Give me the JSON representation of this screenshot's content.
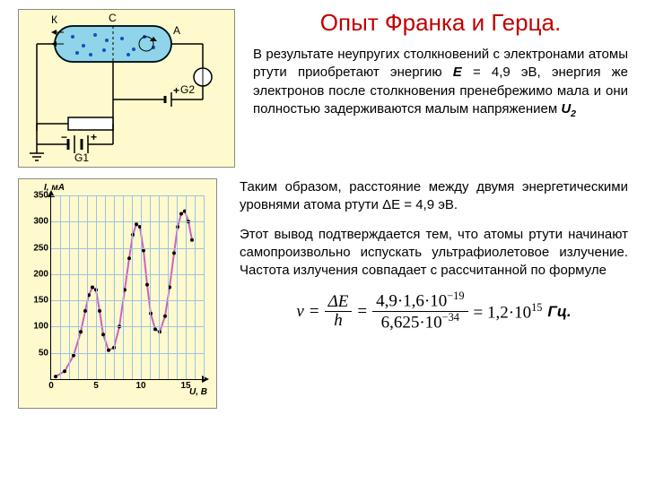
{
  "title": "Опыт Франка и Герца.",
  "para1_a": "В результате неупругих столкновений с электронами атомы ртути приобретают энергию ",
  "para1_E": "E",
  "para1_b": " = 4,9 эВ, энергия же электронов после столкновения пренебрежимо мала и они полностью задерживаются малым напряжением ",
  "para1_U": "U",
  "para1_U_sub": "2",
  "para2": "Таким образом, расстояние между двумя энергетическими уровнями атома ртути ΔE = 4,9  эВ.",
  "para3": "Этот вывод подтверждается тем, что атомы ртути начинают самопроизвольно испускать ультрафиолетовое излучение. Частота излучения совпадает с рассчитанной по формуле",
  "formula": {
    "lhs": "ν",
    "eq": "=",
    "f1_num": "ΔE",
    "f1_den": "h",
    "f2_num": "4,9·1,6·10",
    "f2_num_exp": "−19",
    "f2_den": "6,625·10",
    "f2_den_exp": "−34",
    "rhs": "= 1,2·10",
    "rhs_exp": "15",
    "unit": " Гц."
  },
  "chart": {
    "ylabel": "I, мА",
    "xlabel": "U, В",
    "ylim": [
      0,
      350
    ],
    "ytick_step": 50,
    "xlim": [
      0,
      17
    ],
    "xticks": [
      0,
      5,
      10,
      15
    ],
    "bg": "#fffacd",
    "grid_color": "#9cc3e4",
    "line_color": "#d060c0",
    "points": [
      [
        0.5,
        5
      ],
      [
        1.5,
        15
      ],
      [
        2.5,
        45
      ],
      [
        3.3,
        90
      ],
      [
        3.8,
        130
      ],
      [
        4.2,
        160
      ],
      [
        4.6,
        175
      ],
      [
        5.0,
        170
      ],
      [
        5.4,
        130
      ],
      [
        5.8,
        85
      ],
      [
        6.4,
        55
      ],
      [
        7.0,
        60
      ],
      [
        7.6,
        100
      ],
      [
        8.2,
        170
      ],
      [
        8.7,
        230
      ],
      [
        9.1,
        275
      ],
      [
        9.5,
        295
      ],
      [
        9.9,
        290
      ],
      [
        10.3,
        245
      ],
      [
        10.7,
        180
      ],
      [
        11.1,
        125
      ],
      [
        11.6,
        95
      ],
      [
        12.1,
        90
      ],
      [
        12.7,
        120
      ],
      [
        13.2,
        175
      ],
      [
        13.7,
        240
      ],
      [
        14.1,
        290
      ],
      [
        14.5,
        315
      ],
      [
        14.9,
        320
      ],
      [
        15.3,
        300
      ],
      [
        15.7,
        265
      ]
    ]
  },
  "circuit": {
    "K": "К",
    "C": "С",
    "A": "А",
    "G1": "G1",
    "G2": "G2"
  }
}
